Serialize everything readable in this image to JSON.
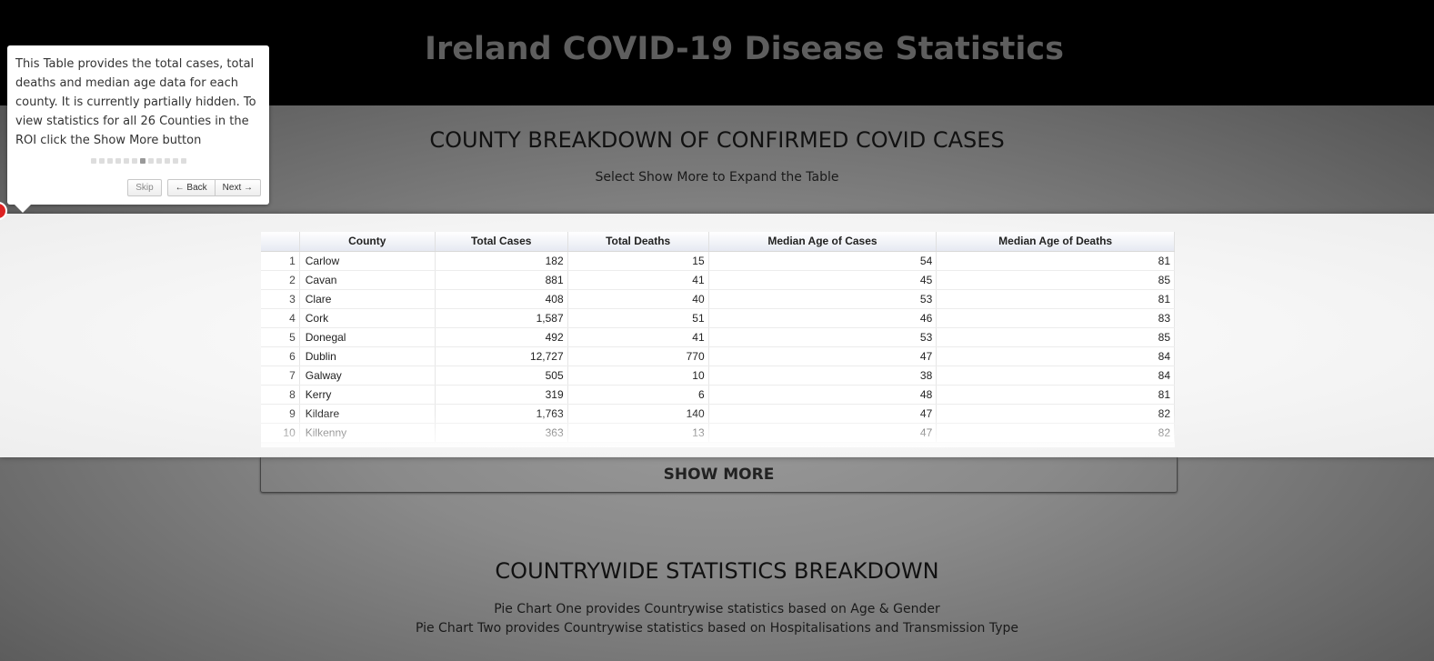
{
  "header": {
    "title": "Ireland COVID-19 Disease Statistics"
  },
  "county_section": {
    "title": "COUNTY BREAKDOWN OF CONFIRMED COVID CASES",
    "subtitle": "Select Show More to Expand the Table",
    "show_more_label": "SHOW MORE"
  },
  "table": {
    "columns": [
      "",
      "County",
      "Total Cases",
      "Total Deaths",
      "Median Age of Cases",
      "Median Age of Deaths"
    ],
    "rows": [
      [
        "1",
        "Carlow",
        "182",
        "15",
        "54",
        "81"
      ],
      [
        "2",
        "Cavan",
        "881",
        "41",
        "45",
        "85"
      ],
      [
        "3",
        "Clare",
        "408",
        "40",
        "53",
        "81"
      ],
      [
        "4",
        "Cork",
        "1,587",
        "51",
        "46",
        "83"
      ],
      [
        "5",
        "Donegal",
        "492",
        "41",
        "53",
        "85"
      ],
      [
        "6",
        "Dublin",
        "12,727",
        "770",
        "47",
        "84"
      ],
      [
        "7",
        "Galway",
        "505",
        "10",
        "38",
        "84"
      ],
      [
        "8",
        "Kerry",
        "319",
        "6",
        "48",
        "81"
      ],
      [
        "9",
        "Kildare",
        "1,763",
        "140",
        "47",
        "82"
      ],
      [
        "10",
        "Kilkenny",
        "363",
        "13",
        "47",
        "82"
      ]
    ]
  },
  "countrywide_section": {
    "title": "COUNTRYWIDE STATISTICS BREAKDOWN",
    "line1": "Pie Chart One provides Countrywise statistics based on Age & Gender",
    "line2": "Pie Chart Two provides Countrywise statistics based on Hospitalisations and Transmission Type"
  },
  "tour_tooltip": {
    "text": "This Table provides the total cases, total deaths and median age data for each county. It is currently partially hidden. To view statistics for all 26 Counties in the ROI click the Show More button",
    "step_count": 12,
    "active_step": 7,
    "skip_label": "Skip",
    "back_label": "← Back",
    "next_label": "Next →"
  },
  "colors": {
    "header_bg": "#000000",
    "header_text": "#5e5e5e",
    "overlay": "#7f7f7f",
    "helper_dot": "#dd2222"
  }
}
